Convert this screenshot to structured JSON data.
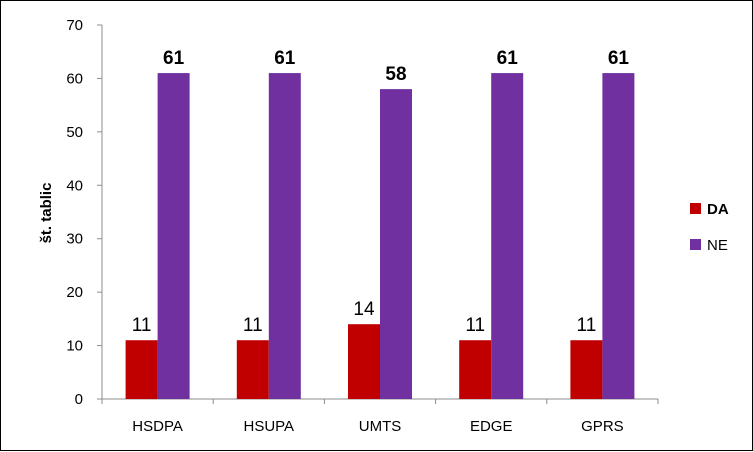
{
  "chart_data": {
    "type": "bar",
    "categories": [
      "HSDPA",
      "HSUPA",
      "UMTS",
      "EDGE",
      "GPRS"
    ],
    "series": [
      {
        "name": "DA",
        "values": [
          11,
          11,
          14,
          11,
          11
        ],
        "color": "#C00000",
        "label_bold": false
      },
      {
        "name": "NE",
        "values": [
          61,
          61,
          58,
          61,
          61
        ],
        "color": "#7030A0",
        "label_bold": true
      }
    ],
    "title": "",
    "xlabel": "",
    "ylabel": "št. tablic",
    "ylim": [
      0,
      70
    ],
    "yticks": [
      0,
      10,
      20,
      30,
      40,
      50,
      60,
      70
    ],
    "grid": false,
    "legend_position": "right",
    "data_labels": true
  }
}
